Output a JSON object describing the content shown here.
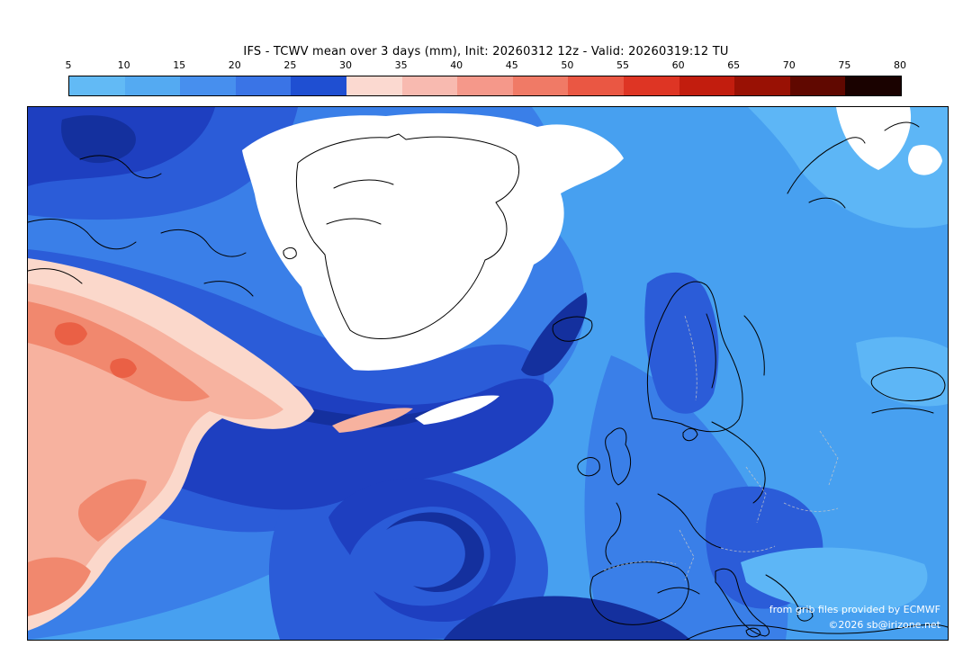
{
  "title": "IFS - TCWV mean over 3 days (mm), Init: 20260312 12z - Valid: 20260319:12 TU",
  "colorbar": {
    "tick_labels": [
      "5",
      "10",
      "15",
      "20",
      "25",
      "30",
      "35",
      "40",
      "45",
      "50",
      "55",
      "60",
      "65",
      "70",
      "75",
      "80"
    ],
    "segment_colors": [
      "#62baf5",
      "#54aaf2",
      "#478fee",
      "#3a74e6",
      "#1f4fd2",
      "#fbd9d0",
      "#f8bab0",
      "#f5988a",
      "#f07a66",
      "#ea5743",
      "#de3524",
      "#c21d0e",
      "#991104",
      "#600800",
      "#1a0200"
    ]
  },
  "map": {
    "colors": {
      "base": "#47a0f0",
      "blue_light": "#5db6f6",
      "blue_medium": "#3a7fe8",
      "blue_deep": "#2b5cd8",
      "blue_navy": "#1e3fc0",
      "blue_dark": "#14309e",
      "pink_light": "#fbd8cb",
      "pink_mid": "#f7b29f",
      "pink_deep": "#f1886e",
      "red_core": "#ea6045",
      "white": "#ffffff",
      "coastline": "#000000",
      "border": "#c8c8c8"
    },
    "credits_line1": "from grib files provided by ECMWF",
    "credits_line2": "©2026 sb@irizone.net"
  },
  "chart_data": {
    "type": "heatmap",
    "title": "IFS - TCWV mean over 3 days (mm), Init: 20260312 12z - Valid: 20260319:12 TU",
    "legend_position": "top",
    "colorbar_ticks": [
      5,
      10,
      15,
      20,
      25,
      30,
      35,
      40,
      45,
      50,
      55,
      60,
      65,
      70,
      75,
      80
    ],
    "colorbar_colors": [
      "#62baf5",
      "#54aaf2",
      "#478fee",
      "#3a74e6",
      "#1f4fd2",
      "#fbd9d0",
      "#f8bab0",
      "#f5988a",
      "#f07a66",
      "#ea5743",
      "#de3524",
      "#c21d0e",
      "#991104",
      "#600800",
      "#1a0200"
    ],
    "units": "mm"
  }
}
